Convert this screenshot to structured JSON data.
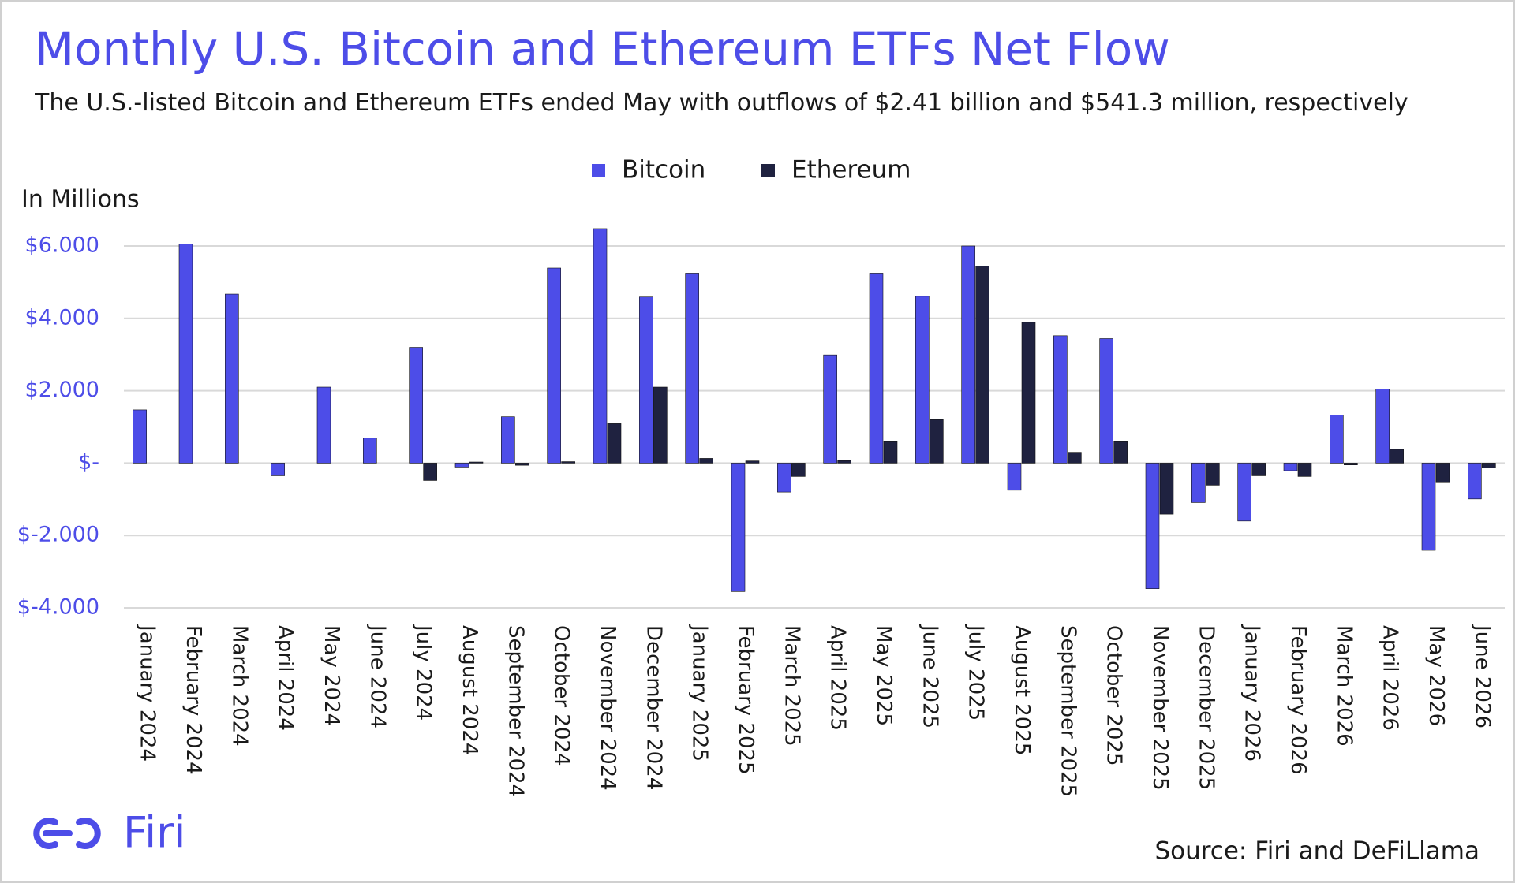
{
  "chart_data": {
    "type": "bar",
    "title": "Monthly U.S. Bitcoin and Ethereum ETFs Net Flow",
    "subtitle": "The U.S.-listed Bitcoin and Ethereum ETFs ended May with outflows of $2.41 billion and $541.3 million, respectively",
    "y_axis_label": "In Millions",
    "source": "Source: Firi and DeFiLlama",
    "brand": "Firi",
    "categories": [
      "January 2024",
      "February 2024",
      "March 2024",
      "April 2024",
      "May 2024",
      "June 2024",
      "July 2024",
      "August 2024",
      "September 2024",
      "October 2024",
      "November 2024",
      "December 2024",
      "January 2025",
      "February 2025",
      "March 2025",
      "April 2025",
      "May 2025",
      "June 2025",
      "July 2025",
      "August 2025",
      "September 2025",
      "October 2025",
      "November 2025",
      "December 2025",
      "January 2026",
      "February 2026",
      "March 2026",
      "April 2026",
      "May 2026",
      "June 2026"
    ],
    "series": [
      {
        "name": "Bitcoin",
        "color": "#4d4de8",
        "values": [
          1470,
          6050,
          4670,
          -350,
          2100,
          690,
          3200,
          -110,
          1280,
          5390,
          6480,
          4590,
          5250,
          -3550,
          -800,
          2990,
          5250,
          4610,
          6000,
          -750,
          3520,
          3440,
          -3470,
          -1090,
          -1600,
          -210,
          1330,
          2050,
          -2410,
          -990
        ]
      },
      {
        "name": "Ethereum",
        "color": "#1f2240",
        "values": [
          null,
          null,
          null,
          null,
          null,
          null,
          -480,
          30,
          -60,
          40,
          1090,
          2100,
          130,
          60,
          -370,
          70,
          590,
          1200,
          5440,
          3890,
          300,
          590,
          -1410,
          -610,
          -350,
          -370,
          -50,
          380,
          -541.3,
          -130
        ]
      }
    ],
    "ylim": [
      -4000,
      6000
    ],
    "yticks": [
      {
        "value": 6000,
        "label": "$6.000"
      },
      {
        "value": 4000,
        "label": "$4.000"
      },
      {
        "value": 2000,
        "label": "$2.000"
      },
      {
        "value": 0,
        "label": "$-"
      },
      {
        "value": -2000,
        "label": "$-2.000"
      },
      {
        "value": -4000,
        "label": "$-4.000"
      }
    ],
    "grid": true,
    "legend": "top"
  }
}
